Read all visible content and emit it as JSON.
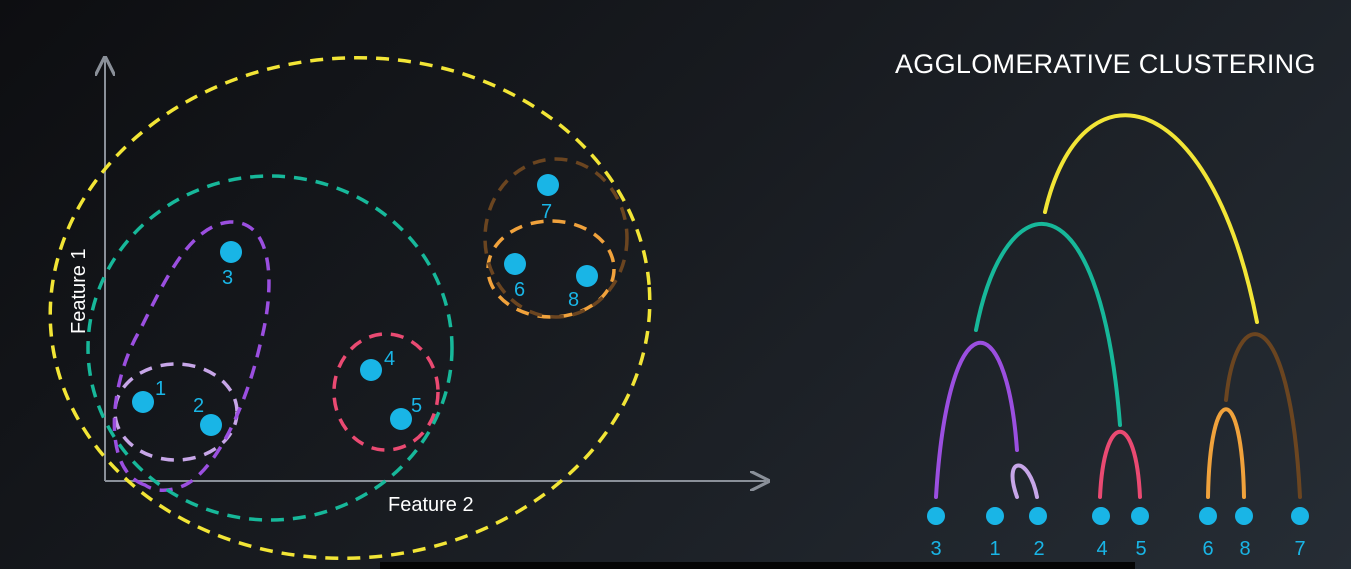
{
  "title": "AGGLOMERATIVE CLUSTERING",
  "scatter": {
    "xlabel": "Feature 2",
    "ylabel": "Feature 1",
    "point_color": "#19b5e6",
    "points": [
      {
        "label": "1"
      },
      {
        "label": "2"
      },
      {
        "label": "3"
      },
      {
        "label": "4"
      },
      {
        "label": "5"
      },
      {
        "label": "6"
      },
      {
        "label": "7"
      },
      {
        "label": "8"
      }
    ],
    "clusters": [
      {
        "members": [
          "1",
          "2"
        ],
        "color": "#c7a6e8"
      },
      {
        "members": [
          "1",
          "2",
          "3"
        ],
        "color": "#9b4fe0"
      },
      {
        "members": [
          "4",
          "5"
        ],
        "color": "#ea4a72"
      },
      {
        "members": [
          "1",
          "2",
          "3",
          "4",
          "5"
        ],
        "color": "#17b89a"
      },
      {
        "members": [
          "6",
          "8"
        ],
        "color": "#f0a23c"
      },
      {
        "members": [
          "6",
          "7",
          "8"
        ],
        "color": "#6b4520"
      },
      {
        "members": [
          "1",
          "2",
          "3",
          "4",
          "5",
          "6",
          "7",
          "8"
        ],
        "color": "#f2e536"
      }
    ]
  },
  "dendrogram": {
    "leaf_order": [
      "3",
      "1",
      "2",
      "4",
      "5",
      "6",
      "8",
      "7"
    ],
    "leaf_color": "#19b5e6",
    "merges": [
      {
        "left": "1",
        "right": "2",
        "color": "#c7a6e8"
      },
      {
        "left": "6",
        "right": "8",
        "color": "#f0a23c"
      },
      {
        "left": "4",
        "right": "5",
        "color": "#ea4a72"
      },
      {
        "left": "3",
        "right": "1-2",
        "color": "#9b4fe0"
      },
      {
        "left": "6-8",
        "right": "7",
        "color": "#6b4520"
      },
      {
        "left": "3-1-2",
        "right": "4-5",
        "color": "#17b89a"
      },
      {
        "left": "3-1-2-4-5",
        "right": "6-8-7",
        "color": "#f2e536"
      }
    ]
  }
}
